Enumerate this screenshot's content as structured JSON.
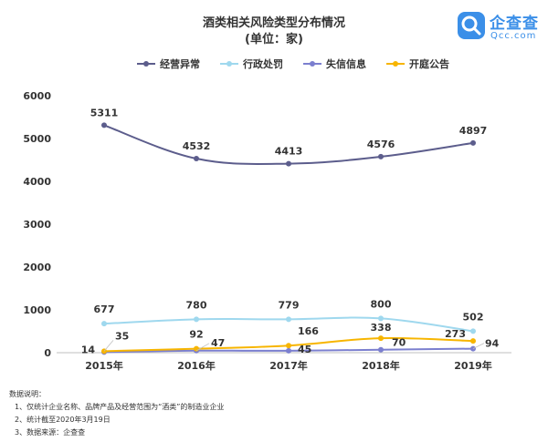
{
  "chart_data": {
    "type": "line",
    "title": "酒类相关风险类型分布情况",
    "subtitle": "(单位：家)",
    "categories": [
      "2015年",
      "2016年",
      "2017年",
      "2018年",
      "2019年"
    ],
    "ylim": [
      0,
      6000
    ],
    "yticks": [
      0,
      1000,
      2000,
      3000,
      4000,
      5000,
      6000
    ],
    "grid": false,
    "legend": "top",
    "series": [
      {
        "name": "经营异常",
        "color": "#5c5d8c",
        "values": [
          5311,
          4532,
          4413,
          4576,
          4897
        ]
      },
      {
        "name": "行政处罚",
        "color": "#9fd8ee",
        "values": [
          677,
          780,
          779,
          800,
          502
        ]
      },
      {
        "name": "失信信息",
        "color": "#7b7fcf",
        "values": [
          14,
          47,
          45,
          70,
          94
        ]
      },
      {
        "name": "开庭公告",
        "color": "#f7b500",
        "values": [
          35,
          92,
          166,
          338,
          273
        ]
      }
    ]
  },
  "logo": {
    "name": "企查查",
    "domain": "Qcc.com",
    "color": "#3b8fe8"
  },
  "notes": {
    "heading": "数据说明：",
    "items": [
      "1、仅统计企业名称、品牌产品及经营范围为“酒类”的制造业企业",
      "2、统计截至2020年3月19日",
      "3、数据来源：企查查"
    ]
  }
}
